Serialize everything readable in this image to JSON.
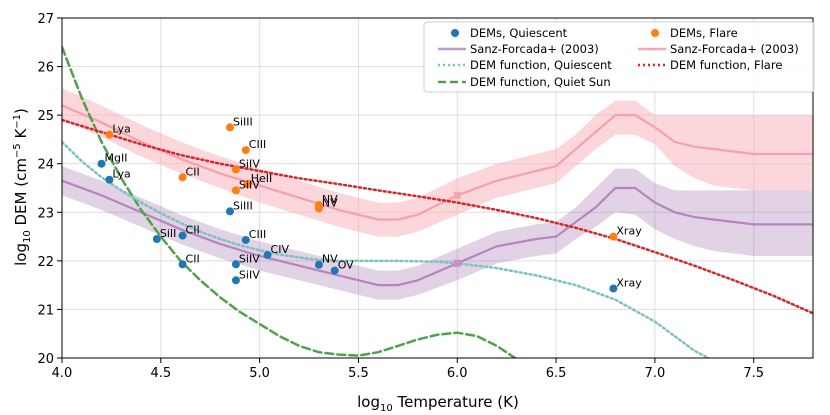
{
  "chart_data": {
    "type": "line",
    "xlabel": "log10 Temperature (K)",
    "ylabel": "log10 DEM (cm^-5 K^-1)",
    "xlim": [
      4.0,
      7.8
    ],
    "ylim": [
      20,
      27
    ],
    "xticks": [
      "4.0",
      "4.5",
      "5.0",
      "5.5",
      "6.0",
      "6.5",
      "7.0",
      "7.5"
    ],
    "yticks": [
      "20",
      "21",
      "22",
      "23",
      "24",
      "25",
      "26",
      "27"
    ],
    "grid": true,
    "legend": {
      "placement": "top-right",
      "entries": [
        {
          "label": "DEMs, Quiescent",
          "kind": "marker",
          "color": "#1f77b4"
        },
        {
          "label": "DEMs, Flare",
          "kind": "marker",
          "color": "#ff7f0e"
        },
        {
          "label": "Sanz-Forcada+ (2003)",
          "kind": "line",
          "color": "#c09ac8"
        },
        {
          "label": "Sanz-Forcada+ (2003)",
          "kind": "line",
          "color": "#f5a7b0"
        },
        {
          "label": "DEM function, Quiescent",
          "kind": "dotted",
          "color": "#7cc3c0"
        },
        {
          "label": "DEM function, Flare",
          "kind": "dotted",
          "color": "#d62728"
        },
        {
          "label": "DEM function, Quiet Sun",
          "kind": "dashed",
          "color": "#4ea24a"
        }
      ]
    },
    "scatter_quiescent": {
      "name": "DEMs, Quiescent",
      "color": "#1f77b4",
      "points": [
        {
          "x": 4.2,
          "y": 24.0,
          "label": "MgII"
        },
        {
          "x": 4.24,
          "y": 23.67,
          "label": "Lya"
        },
        {
          "x": 4.48,
          "y": 22.45,
          "label": "SiII"
        },
        {
          "x": 4.61,
          "y": 22.52,
          "label": "CII"
        },
        {
          "x": 4.61,
          "y": 21.93,
          "label": "CII"
        },
        {
          "x": 4.85,
          "y": 23.02,
          "label": "SiIII"
        },
        {
          "x": 4.88,
          "y": 21.93,
          "label": "SiIV"
        },
        {
          "x": 4.88,
          "y": 21.6,
          "label": "SiIV"
        },
        {
          "x": 4.93,
          "y": 22.43,
          "label": "CIII"
        },
        {
          "x": 5.04,
          "y": 22.12,
          "label": "CIV"
        },
        {
          "x": 5.3,
          "y": 21.92,
          "label": "NV"
        },
        {
          "x": 5.38,
          "y": 21.8,
          "label": "OV"
        },
        {
          "x": 6.79,
          "y": 21.43,
          "label": "Xray"
        }
      ]
    },
    "scatter_flare": {
      "name": "DEMs, Flare",
      "color": "#ff7f0e",
      "points": [
        {
          "x": 4.24,
          "y": 24.6,
          "label": "Lya"
        },
        {
          "x": 4.61,
          "y": 23.72,
          "label": "CII"
        },
        {
          "x": 4.85,
          "y": 24.75,
          "label": "SiIII"
        },
        {
          "x": 4.93,
          "y": 24.28,
          "label": "CIII"
        },
        {
          "x": 4.88,
          "y": 23.88,
          "label": "SiIV"
        },
        {
          "x": 4.88,
          "y": 23.45,
          "label": "SiIV"
        },
        {
          "x": 4.94,
          "y": 23.58,
          "label": "HeII"
        },
        {
          "x": 5.3,
          "y": 23.15,
          "label": "NV"
        },
        {
          "x": 5.3,
          "y": 23.08,
          "label": "NV"
        },
        {
          "x": 6.79,
          "y": 22.5,
          "label": "Xray"
        }
      ]
    },
    "sanz_quiescent": {
      "name": "Sanz-Forcada+ (2003)",
      "color": "#a05aa8",
      "x": [
        4.0,
        4.2,
        4.4,
        4.6,
        4.8,
        5.0,
        5.2,
        5.4,
        5.6,
        5.7,
        5.8,
        6.0,
        6.2,
        6.4,
        6.5,
        6.6,
        6.7,
        6.8,
        6.9,
        7.0,
        7.1,
        7.2,
        7.3,
        7.5,
        7.8
      ],
      "y": [
        23.65,
        23.35,
        23.0,
        22.65,
        22.35,
        22.1,
        21.9,
        21.7,
        21.5,
        21.5,
        21.6,
        21.95,
        22.3,
        22.45,
        22.5,
        22.8,
        23.1,
        23.5,
        23.5,
        23.2,
        23.0,
        22.9,
        22.85,
        22.75,
        22.75
      ],
      "upper": [
        23.95,
        23.65,
        23.3,
        22.95,
        22.65,
        22.4,
        22.2,
        22.0,
        21.8,
        21.8,
        21.9,
        22.25,
        22.6,
        22.75,
        22.8,
        23.1,
        23.5,
        23.9,
        23.9,
        23.6,
        23.45,
        23.45,
        23.45,
        23.45,
        23.45
      ],
      "lower": [
        23.35,
        23.05,
        22.7,
        22.35,
        22.05,
        21.8,
        21.6,
        21.4,
        21.2,
        21.2,
        21.3,
        21.6,
        21.95,
        22.1,
        22.15,
        22.45,
        22.7,
        23.0,
        22.95,
        22.65,
        22.45,
        22.3,
        22.2,
        22.1,
        22.1
      ]
    },
    "sanz_flare": {
      "name": "Sanz-Forcada+ (2003)",
      "color": "#f5a7b0",
      "x": [
        4.0,
        4.2,
        4.4,
        4.6,
        4.8,
        5.0,
        5.2,
        5.4,
        5.6,
        5.7,
        5.8,
        6.0,
        6.2,
        6.4,
        6.5,
        6.6,
        6.7,
        6.8,
        6.9,
        7.0,
        7.1,
        7.2,
        7.3,
        7.5,
        7.8
      ],
      "y": [
        25.2,
        24.85,
        24.45,
        24.1,
        23.8,
        23.55,
        23.3,
        23.05,
        22.85,
        22.85,
        22.95,
        23.35,
        23.65,
        23.85,
        23.95,
        24.3,
        24.65,
        25.0,
        25.0,
        24.75,
        24.45,
        24.35,
        24.3,
        24.2,
        24.2
      ],
      "upper": [
        25.55,
        25.2,
        24.8,
        24.45,
        24.15,
        23.9,
        23.65,
        23.4,
        23.2,
        23.2,
        23.3,
        23.7,
        24.0,
        24.2,
        24.3,
        24.6,
        25.0,
        25.3,
        25.3,
        25.0,
        25.0,
        25.0,
        25.0,
        25.0,
        25.0
      ],
      "lower": [
        24.9,
        24.55,
        24.15,
        23.8,
        23.5,
        23.2,
        22.95,
        22.7,
        22.5,
        22.5,
        22.6,
        22.95,
        23.3,
        23.5,
        23.6,
        23.95,
        24.3,
        24.6,
        24.6,
        24.4,
        23.95,
        23.7,
        23.55,
        23.45,
        23.45
      ]
    },
    "dem_quiescent": {
      "name": "DEM function, Quiescent",
      "color": "#7cc3c0",
      "x": [
        4.0,
        4.1,
        4.2,
        4.3,
        4.4,
        4.5,
        4.6,
        4.7,
        4.8,
        4.9,
        5.0,
        5.1,
        5.2,
        5.3,
        5.4,
        5.5,
        5.7,
        5.9,
        6.0,
        6.2,
        6.4,
        6.6,
        6.8,
        7.0,
        7.2,
        7.28
      ],
      "y": [
        24.45,
        24.05,
        23.72,
        23.45,
        23.2,
        22.98,
        22.78,
        22.6,
        22.45,
        22.32,
        22.22,
        22.13,
        22.07,
        22.02,
        22.0,
        22.0,
        22.0,
        21.98,
        21.95,
        21.85,
        21.7,
        21.5,
        21.2,
        20.75,
        20.15,
        19.98
      ]
    },
    "dem_flare": {
      "name": "DEM function, Flare",
      "color": "#d62728",
      "x": [
        4.0,
        4.2,
        4.4,
        4.6,
        4.8,
        5.0,
        5.2,
        5.4,
        5.6,
        5.8,
        6.0,
        6.2,
        6.4,
        6.6,
        6.8,
        7.0,
        7.2,
        7.4,
        7.6,
        7.8
      ],
      "y": [
        24.9,
        24.65,
        24.4,
        24.18,
        24.0,
        23.85,
        23.7,
        23.58,
        23.45,
        23.33,
        23.2,
        23.05,
        22.88,
        22.68,
        22.45,
        22.18,
        21.9,
        21.6,
        21.28,
        20.92
      ]
    },
    "dem_quiet_sun": {
      "name": "DEM function, Quiet Sun",
      "color": "#4ea24a",
      "x": [
        4.0,
        4.1,
        4.2,
        4.3,
        4.4,
        4.5,
        4.6,
        4.7,
        4.8,
        4.9,
        5.0,
        5.1,
        5.2,
        5.3,
        5.4,
        5.5,
        5.6,
        5.7,
        5.8,
        5.9,
        6.0,
        6.1,
        6.2,
        6.3
      ],
      "y": [
        26.4,
        25.35,
        24.45,
        23.7,
        23.05,
        22.5,
        22.0,
        21.6,
        21.25,
        20.95,
        20.7,
        20.45,
        20.25,
        20.12,
        20.07,
        20.05,
        20.12,
        20.25,
        20.38,
        20.48,
        20.52,
        20.45,
        20.25,
        19.98
      ]
    },
    "markers": [
      {
        "x": 6.0,
        "y": 21.95,
        "color": "#c98fcf"
      },
      {
        "x": 6.0,
        "y": 23.35,
        "color": "#f5a7b0"
      }
    ]
  }
}
